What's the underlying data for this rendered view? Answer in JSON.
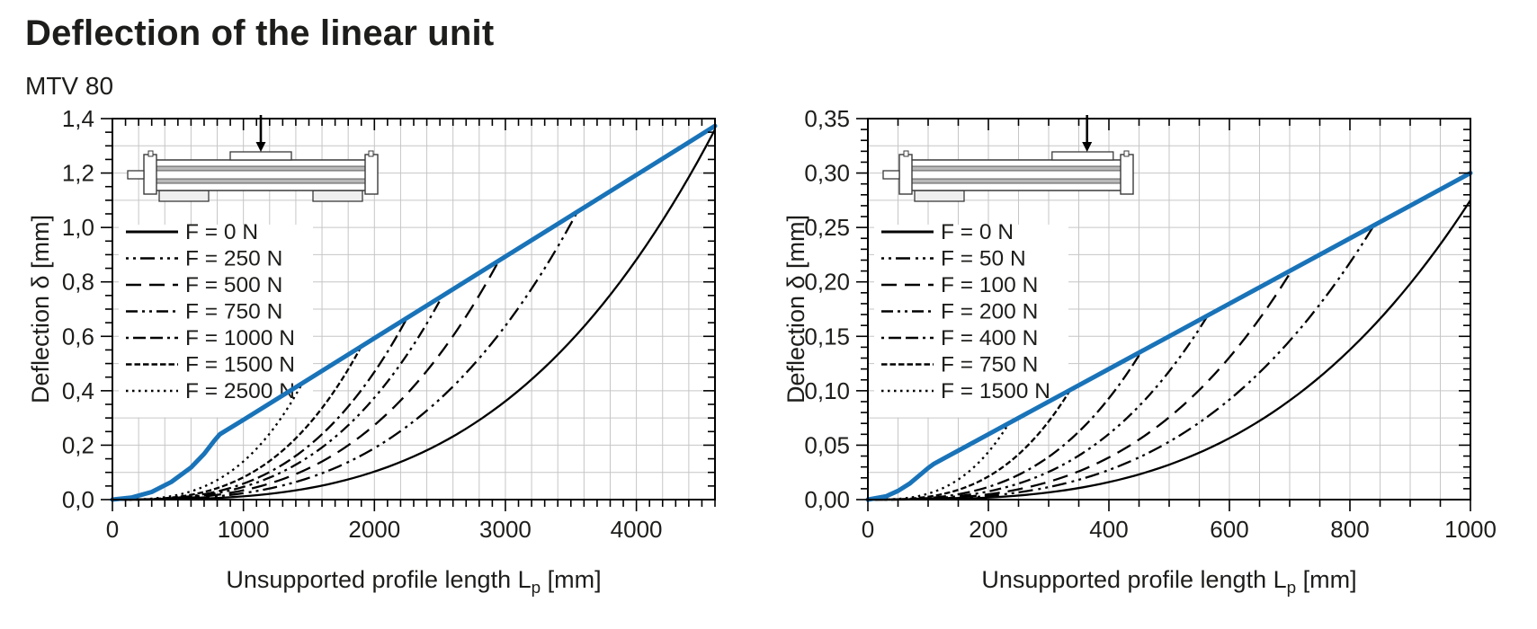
{
  "page": {
    "title": "Deflection of the linear unit",
    "model": "MTV 80"
  },
  "colors": {
    "curve_black": "#000000",
    "envelope_blue": "#1973b8",
    "grid_gray": "#c6c6c6",
    "axis_black": "#000000"
  },
  "chart_data": [
    {
      "type": "line",
      "ylabel": "Deflection δ [mm]",
      "xlabel_base": "Unsupported profile length L",
      "xlabel_sub": "p",
      "xlabel_unit": " [mm]",
      "xlim": [
        0,
        4600
      ],
      "ylim": [
        0,
        1.4
      ],
      "x_major_ticks": [
        0,
        1000,
        2000,
        3000,
        4000
      ],
      "x_minor_step": 100,
      "x_grid_step": 200,
      "y_major_step": 0.2,
      "y_minor_step": 0.05,
      "y_grid_step": 0.1,
      "y_decimals": 1,
      "decimal_separator": ",",
      "grid": true,
      "legend_position": "upper-left",
      "series": [
        {
          "name": "F = 0 N",
          "style": "solid",
          "end_x": 4600,
          "end_y": 1.36,
          "exponent": 3.1
        },
        {
          "name": "F = 250 N",
          "style": "dot-dot-dash",
          "end_x": 3550,
          "end_y": 1.058,
          "exponent": 3.0
        },
        {
          "name": "F = 500 N",
          "style": "long-dash",
          "end_x": 2950,
          "end_y": 0.878,
          "exponent": 3.0
        },
        {
          "name": "F = 750 N",
          "style": "dash-dot-dot",
          "end_x": 2520,
          "end_y": 0.749,
          "exponent": 3.0
        },
        {
          "name": "F = 1000 N",
          "style": "dot-dash-dash",
          "end_x": 2250,
          "end_y": 0.668,
          "exponent": 3.0
        },
        {
          "name": "F = 1500 N",
          "style": "fine-dash",
          "end_x": 1900,
          "end_y": 0.563,
          "exponent": 3.0
        },
        {
          "name": "F = 2500 N",
          "style": "dotted",
          "end_x": 1450,
          "end_y": 0.428,
          "exponent": 3.0
        }
      ],
      "envelope": {
        "name": "permissible-deflection-limit",
        "points": [
          [
            0,
            0
          ],
          [
            150,
            0.008
          ],
          [
            300,
            0.028
          ],
          [
            450,
            0.065
          ],
          [
            600,
            0.118
          ],
          [
            700,
            0.168
          ],
          [
            780,
            0.218
          ],
          [
            820,
            0.24
          ],
          [
            1000,
            0.293
          ],
          [
            1500,
            0.443
          ],
          [
            2000,
            0.593
          ],
          [
            2500,
            0.743
          ],
          [
            3000,
            0.893
          ],
          [
            3500,
            1.043
          ],
          [
            4000,
            1.193
          ],
          [
            4600,
            1.373
          ]
        ]
      },
      "inset": {
        "supports": [
          "left",
          "right"
        ],
        "force_frac": 0.5,
        "carriage_frac": 0.5
      }
    },
    {
      "type": "line",
      "ylabel": "Deflection δ [mm]",
      "xlabel_base": "Unsupported profile length L",
      "xlabel_sub": "p",
      "xlabel_unit": " [mm]",
      "xlim": [
        0,
        1000
      ],
      "ylim": [
        0,
        0.35
      ],
      "x_major_ticks": [
        0,
        200,
        400,
        600,
        800,
        1000
      ],
      "x_minor_step": 50,
      "x_grid_step": 50,
      "y_major_step": 0.05,
      "y_minor_step": 0.01,
      "y_grid_step": 0.025,
      "y_decimals": 2,
      "decimal_separator": ",",
      "grid": true,
      "legend_position": "upper-left",
      "series": [
        {
          "name": "F = 0 N",
          "style": "solid",
          "end_x": 1000,
          "end_y": 0.275,
          "exponent": 3.1
        },
        {
          "name": "F = 50 N",
          "style": "dot-dot-dash",
          "end_x": 840,
          "end_y": 0.252,
          "exponent": 3.0
        },
        {
          "name": "F = 100 N",
          "style": "long-dash",
          "end_x": 705,
          "end_y": 0.212,
          "exponent": 3.0
        },
        {
          "name": "F = 200 N",
          "style": "dash-dot-dot",
          "end_x": 565,
          "end_y": 0.17,
          "exponent": 3.0
        },
        {
          "name": "F = 400 N",
          "style": "dot-dash-dash",
          "end_x": 455,
          "end_y": 0.137,
          "exponent": 3.0
        },
        {
          "name": "F = 750 N",
          "style": "fine-dash",
          "end_x": 335,
          "end_y": 0.1,
          "exponent": 3.0
        },
        {
          "name": "F = 1500 N",
          "style": "dotted",
          "end_x": 235,
          "end_y": 0.071,
          "exponent": 3.0
        }
      ],
      "envelope": {
        "name": "permissible-deflection-limit",
        "points": [
          [
            0,
            0
          ],
          [
            30,
            0.003
          ],
          [
            50,
            0.008
          ],
          [
            70,
            0.015
          ],
          [
            85,
            0.022
          ],
          [
            100,
            0.029
          ],
          [
            110,
            0.033
          ],
          [
            150,
            0.045
          ],
          [
            200,
            0.06
          ],
          [
            300,
            0.09
          ],
          [
            400,
            0.12
          ],
          [
            500,
            0.15
          ],
          [
            600,
            0.18
          ],
          [
            700,
            0.21
          ],
          [
            800,
            0.24
          ],
          [
            900,
            0.27
          ],
          [
            1000,
            0.3
          ]
        ]
      },
      "inset": {
        "supports": [
          "left"
        ],
        "force_frac": 0.82,
        "carriage_frac": 0.8
      }
    }
  ]
}
